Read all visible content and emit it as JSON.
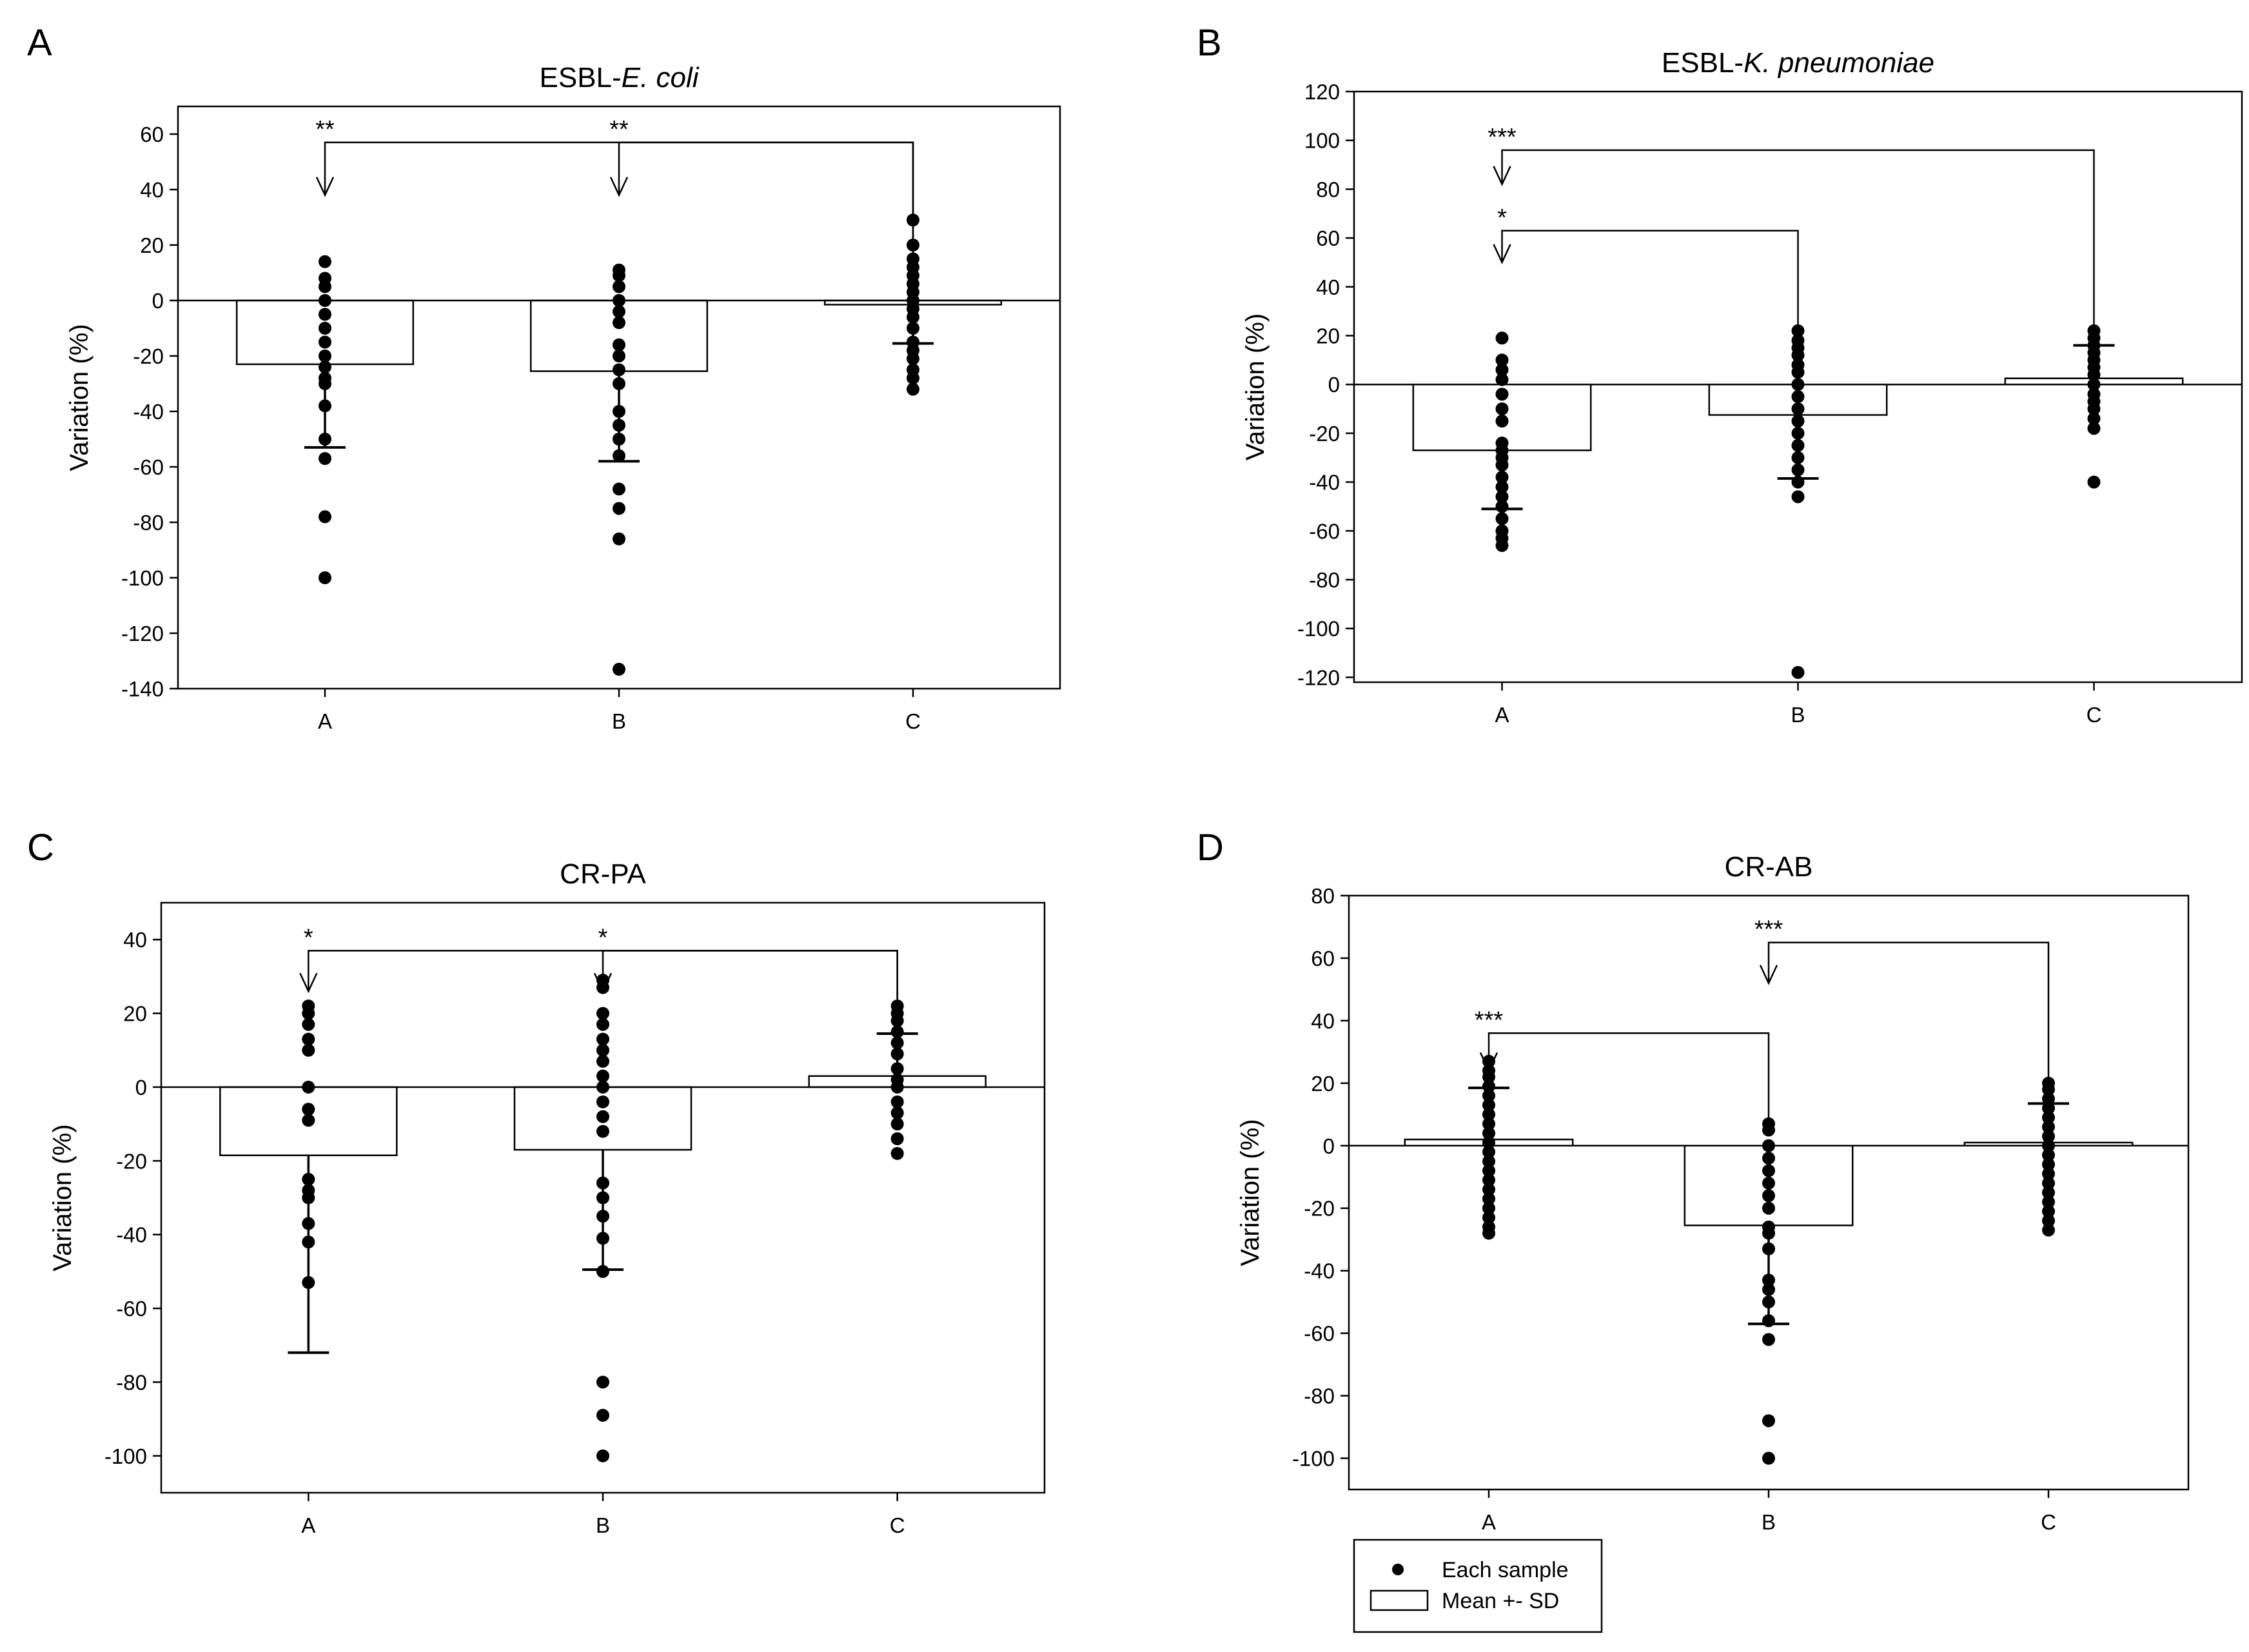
{
  "figure": {
    "legend": {
      "items": [
        {
          "label": "Each sample",
          "marker": "dot"
        },
        {
          "label": "Mean +- SD",
          "marker": "bar"
        }
      ]
    }
  },
  "chart_data": [
    {
      "panel_letter": "A",
      "type": "bar",
      "title_prefix": "ESBL-",
      "title_italic": "E. coli",
      "ylabel": "Variation (%)",
      "categories": [
        "A",
        "B",
        "C"
      ],
      "ylim": [
        -140,
        70
      ],
      "yticks": [
        -140,
        -120,
        -100,
        -80,
        -60,
        -40,
        -20,
        0,
        20,
        40,
        60
      ],
      "bars": [
        {
          "category": "A",
          "mean": -23,
          "sd_end": -53
        },
        {
          "category": "B",
          "mean": -25.5,
          "sd_end": -58
        },
        {
          "category": "C",
          "mean": -1.5,
          "sd_end": -15.5
        }
      ],
      "points": [
        [
          14,
          8,
          5,
          0,
          -5,
          -10,
          -15,
          -20,
          -24,
          -28,
          -30,
          -38,
          -50,
          -57,
          -78,
          -100
        ],
        [
          11,
          9,
          5,
          0,
          -4,
          -8,
          -16,
          -20,
          -25,
          -30,
          -40,
          -45,
          -50,
          -56,
          -68,
          -75,
          -86,
          -133
        ],
        [
          29,
          20,
          15,
          12,
          9,
          6,
          3,
          0,
          -3,
          -6,
          -10,
          -15,
          -18,
          -21,
          -25,
          -28,
          -32
        ]
      ],
      "significance": [
        {
          "from": "A",
          "to": "C",
          "label": "**",
          "bracket_y": 57,
          "arrow_tip": 38
        },
        {
          "from": "B",
          "to": "C",
          "label": "**",
          "bracket_y": 57,
          "arrow_tip": 38
        }
      ]
    },
    {
      "panel_letter": "B",
      "type": "bar",
      "title_prefix": "ESBL-",
      "title_italic": "K. pneumoniae",
      "ylabel": "Variation (%)",
      "categories": [
        "A",
        "B",
        "C"
      ],
      "ylim": [
        -122,
        120
      ],
      "yticks": [
        -120,
        -100,
        -80,
        -60,
        -40,
        -20,
        0,
        20,
        40,
        60,
        80,
        100,
        120
      ],
      "bars": [
        {
          "category": "A",
          "mean": -27,
          "sd_end": -51
        },
        {
          "category": "B",
          "mean": -12.5,
          "sd_end": -38.5
        },
        {
          "category": "C",
          "mean": 2.5,
          "sd_end": 16
        }
      ],
      "points": [
        [
          19,
          10,
          6,
          2,
          -4,
          -10,
          -15,
          -24,
          -27,
          -30,
          -33,
          -38,
          -42,
          -46,
          -50,
          -55,
          -60,
          -63,
          -66
        ],
        [
          22,
          18,
          15,
          12,
          8,
          5,
          0,
          -5,
          -10,
          -15,
          -20,
          -25,
          -30,
          -35,
          -40,
          -46,
          -118
        ],
        [
          22,
          19,
          16,
          13,
          10,
          7,
          4,
          0,
          -4,
          -7,
          -10,
          -14,
          -18,
          -40
        ]
      ],
      "significance": [
        {
          "from": "A",
          "to": "C",
          "label": "***",
          "bracket_y": 96,
          "arrow_tip": 82
        },
        {
          "from": "A",
          "to": "B",
          "label": "*",
          "bracket_y": 63,
          "arrow_tip": 50
        }
      ]
    },
    {
      "panel_letter": "C",
      "type": "bar",
      "title_prefix": "CR-PA",
      "title_italic": "",
      "ylabel": "Variation (%)",
      "categories": [
        "A",
        "B",
        "C"
      ],
      "ylim": [
        -110,
        50
      ],
      "yticks": [
        -100,
        -80,
        -60,
        -40,
        -20,
        0,
        20,
        40
      ],
      "bars": [
        {
          "category": "A",
          "mean": -18.5,
          "sd_end": -72
        },
        {
          "category": "B",
          "mean": -17,
          "sd_end": -49.5
        },
        {
          "category": "C",
          "mean": 3,
          "sd_end": 14.5
        }
      ],
      "points": [
        [
          22,
          20,
          17,
          13,
          10,
          0,
          -6,
          -9,
          -25,
          -28,
          -30,
          -37,
          -42,
          -53
        ],
        [
          29,
          27,
          20,
          17,
          13,
          10,
          7,
          3,
          0,
          -4,
          -8,
          -12,
          -26,
          -30,
          -35,
          -41,
          -50,
          -80,
          -89,
          -100
        ],
        [
          22,
          20,
          18,
          15,
          12,
          9,
          5,
          2,
          0,
          -4,
          -7,
          -10,
          -14,
          -18
        ]
      ],
      "significance": [
        {
          "from": "A",
          "to": "C",
          "label": "*",
          "bracket_y": 37,
          "arrow_tip": 26
        },
        {
          "from": "B",
          "to": "C",
          "label": "*",
          "bracket_y": 37,
          "arrow_tip": 26
        }
      ]
    },
    {
      "panel_letter": "D",
      "type": "bar",
      "title_prefix": "CR-AB",
      "title_italic": "",
      "ylabel": "Variation (%)",
      "categories": [
        "A",
        "B",
        "C"
      ],
      "ylim": [
        -110,
        80
      ],
      "yticks": [
        -100,
        -80,
        -60,
        -40,
        -20,
        0,
        20,
        40,
        60,
        80
      ],
      "bars": [
        {
          "category": "A",
          "mean": 2,
          "sd_end": 18.5
        },
        {
          "category": "B",
          "mean": -25.5,
          "sd_end": -57
        },
        {
          "category": "C",
          "mean": 1,
          "sd_end": 13.5
        }
      ],
      "points": [
        [
          27,
          24,
          22,
          19,
          16,
          13,
          10,
          7,
          4,
          1,
          -2,
          -5,
          -8,
          -11,
          -14,
          -17,
          -20,
          -23,
          -26,
          -28
        ],
        [
          7,
          5,
          0,
          -4,
          -8,
          -12,
          -16,
          -20,
          -26,
          -28,
          -33,
          -43,
          -46,
          -50,
          -56,
          -62,
          -88,
          -100
        ],
        [
          20,
          18,
          15,
          12,
          9,
          6,
          3,
          0,
          -3,
          -6,
          -9,
          -12,
          -15,
          -18,
          -21,
          -24,
          -27
        ]
      ],
      "significance": [
        {
          "from": "B",
          "to": "C",
          "label": "***",
          "bracket_y": 65,
          "arrow_tip": 52
        },
        {
          "from": "A",
          "to": "B",
          "label": "***",
          "bracket_y": 36,
          "arrow_tip": 24
        }
      ]
    }
  ]
}
